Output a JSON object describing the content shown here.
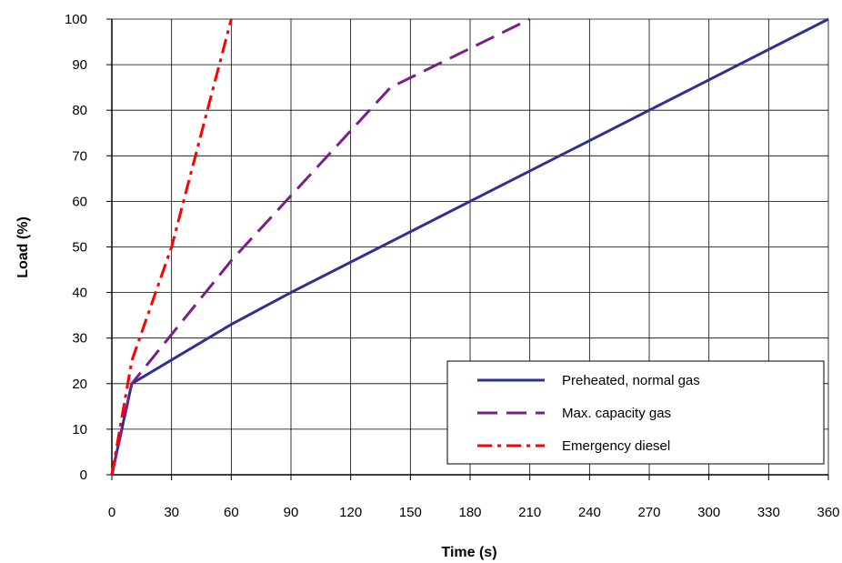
{
  "chart_data": {
    "type": "line",
    "xlabel": "Time (s)",
    "ylabel": "Load (%)",
    "xlim": [
      0,
      360
    ],
    "ylim": [
      0,
      100
    ],
    "xticks": [
      "0",
      "30",
      "60",
      "90",
      "120",
      "150",
      "180",
      "210",
      "240",
      "270",
      "300",
      "330",
      "360"
    ],
    "yticks": [
      "0",
      "10",
      "20",
      "30",
      "40",
      "50",
      "60",
      "70",
      "80",
      "90",
      "100"
    ],
    "grid": true,
    "legend_position": "bottom-right",
    "series": [
      {
        "name": "Preheated, normal gas",
        "color": "#2E3192",
        "dash": "solid",
        "x": [
          0,
          10,
          60,
          90,
          360
        ],
        "y": [
          0,
          20,
          33,
          40,
          100
        ]
      },
      {
        "name": "Max. capacity gas",
        "color": "#7B1E8C",
        "dash": "long-dash",
        "x": [
          0,
          10,
          60,
          140,
          210
        ],
        "y": [
          0,
          20,
          47,
          85,
          100
        ]
      },
      {
        "name": "Emergency diesel",
        "color": "#FF0000",
        "dash": "dash-dot",
        "x": [
          0,
          10,
          30,
          60
        ],
        "y": [
          0,
          25,
          50,
          100
        ]
      }
    ]
  }
}
